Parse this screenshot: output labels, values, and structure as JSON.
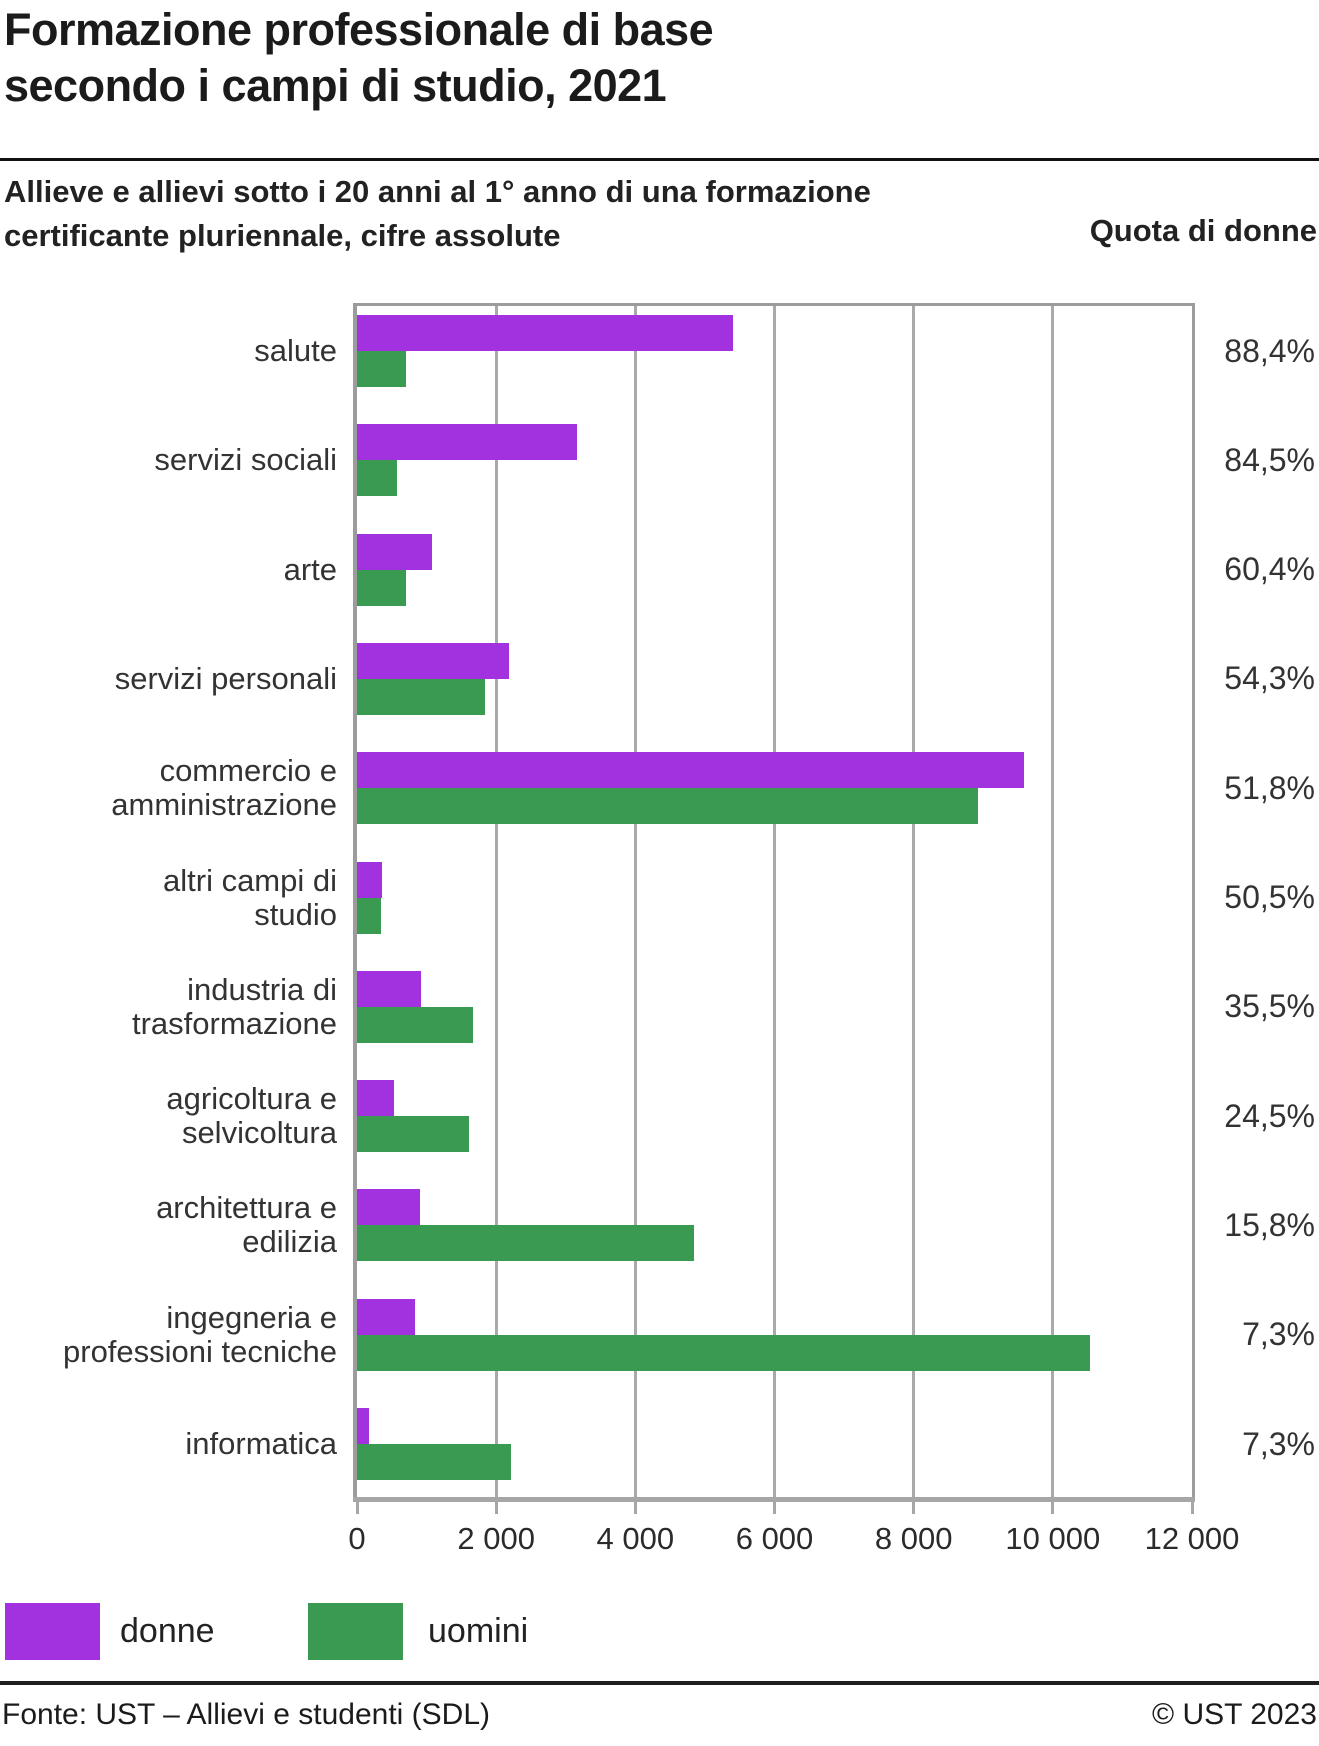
{
  "header": {
    "title_line1": "Formazione professionale di base",
    "title_line2": "secondo i campi di studio, 2021",
    "subtitle_line1": "Allieve e allievi sotto i 20 anni al 1° anno di una formazione",
    "subtitle_line2": "certificante pluriennale, cifre assolute",
    "right_column_label": "Quota di donne"
  },
  "chart_data": {
    "type": "bar",
    "orientation": "horizontal",
    "title": "Formazione professionale di base secondo i campi di studio, 2021",
    "xlabel": "",
    "ylabel": "",
    "xlim": [
      0,
      12000
    ],
    "grid": true,
    "x_axis": {
      "tick_values": [
        0,
        2000,
        4000,
        6000,
        8000,
        10000,
        12000
      ],
      "tick_labels": [
        "0",
        "2 000",
        "4 000",
        "6 000",
        "8 000",
        "10 000",
        "12 000"
      ],
      "gridline_values": [
        2000,
        4000,
        6000,
        8000,
        10000
      ]
    },
    "categories": [
      {
        "lines": [
          "salute"
        ],
        "quota_donne": "88,4%"
      },
      {
        "lines": [
          "servizi sociali"
        ],
        "quota_donne": "84,5%"
      },
      {
        "lines": [
          "arte"
        ],
        "quota_donne": "60,4%"
      },
      {
        "lines": [
          "servizi personali"
        ],
        "quota_donne": "54,3%"
      },
      {
        "lines": [
          "commercio e",
          "amministrazione"
        ],
        "quota_donne": "51,8%"
      },
      {
        "lines": [
          "altri campi di",
          "studio"
        ],
        "quota_donne": "50,5%"
      },
      {
        "lines": [
          "industria di",
          "trasformazione"
        ],
        "quota_donne": "35,5%"
      },
      {
        "lines": [
          "agricoltura e",
          "selvicoltura"
        ],
        "quota_donne": "24,5%"
      },
      {
        "lines": [
          "architettura e",
          "edilizia"
        ],
        "quota_donne": "15,8%"
      },
      {
        "lines": [
          "ingegneria e",
          "professioni tecniche"
        ],
        "quota_donne": "7,3%"
      },
      {
        "lines": [
          "informatica"
        ],
        "quota_donne": "7,3%"
      }
    ],
    "series": [
      {
        "name": "donne",
        "color": "#A232DF",
        "values": [
          5400,
          3160,
          1080,
          2185,
          9590,
          355,
          920,
          525,
          910,
          830,
          175
        ]
      },
      {
        "name": "uomini",
        "color": "#3A9A52",
        "values": [
          710,
          580,
          708,
          1840,
          8930,
          348,
          1670,
          1615,
          4850,
          10540,
          2220
        ]
      }
    ],
    "legend_position": "bottom"
  },
  "legend": {
    "items": [
      {
        "label": "donne",
        "color": "#A232DF"
      },
      {
        "label": "uomini",
        "color": "#3A9A52"
      }
    ]
  },
  "footer": {
    "source": "Fonte: UST – Allievi e studenti (SDL)",
    "copyright": "© UST 2023"
  }
}
